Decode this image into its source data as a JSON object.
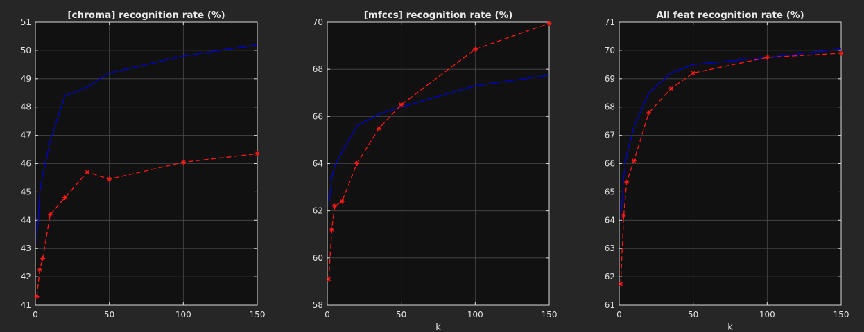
{
  "figure": {
    "background": "#262626",
    "axes_background": "#111111",
    "grid_color": "#4a4a4a",
    "text_color": "#e0e0e0"
  },
  "chart_data": [
    {
      "type": "line",
      "title": "[chroma] recognition rate (%)",
      "xlabel": "",
      "ylabel": "",
      "xlim": [
        0,
        150
      ],
      "ylim": [
        41,
        51
      ],
      "xticks": [
        0,
        50,
        100,
        150
      ],
      "yticks": [
        41,
        42,
        43,
        44,
        45,
        46,
        47,
        48,
        49,
        50,
        51
      ],
      "grid": true,
      "series": [
        {
          "color": "#0000cc",
          "style": "solid",
          "marker": "none",
          "x": [
            1,
            3,
            5,
            10,
            20,
            35,
            50,
            100,
            150
          ],
          "y": [
            43.2,
            45.0,
            45.6,
            46.8,
            48.4,
            48.7,
            49.2,
            49.8,
            50.2
          ]
        },
        {
          "color": "#ff1a1a",
          "style": "dashed",
          "marker": "asterisk",
          "x": [
            1,
            3,
            5,
            10,
            20,
            35,
            50,
            100,
            150
          ],
          "y": [
            41.3,
            42.25,
            42.65,
            44.2,
            44.8,
            45.7,
            45.45,
            46.05,
            46.35
          ]
        }
      ]
    },
    {
      "type": "line",
      "title": "[mfccs] recognition rate (%)",
      "xlabel": "k",
      "ylabel": "",
      "xlim": [
        0,
        150
      ],
      "ylim": [
        58,
        70
      ],
      "xticks": [
        0,
        50,
        100,
        150
      ],
      "yticks": [
        58,
        60,
        62,
        64,
        66,
        68,
        70
      ],
      "grid": true,
      "series": [
        {
          "color": "#0000cc",
          "style": "solid",
          "marker": "none",
          "x": [
            1,
            3,
            5,
            10,
            20,
            35,
            50,
            100,
            150
          ],
          "y": [
            62.2,
            63.4,
            63.9,
            64.5,
            65.6,
            66.1,
            66.4,
            67.3,
            67.75
          ]
        },
        {
          "color": "#ff1a1a",
          "style": "dashed",
          "marker": "asterisk",
          "x": [
            1,
            3,
            5,
            10,
            20,
            35,
            50,
            100,
            150
          ],
          "y": [
            59.1,
            61.2,
            62.2,
            62.4,
            64.0,
            65.5,
            66.5,
            68.85,
            69.95
          ]
        }
      ]
    },
    {
      "type": "line",
      "title": "All feat recognition rate (%)",
      "xlabel": "k",
      "ylabel": "",
      "xlim": [
        0,
        150
      ],
      "ylim": [
        61,
        71
      ],
      "xticks": [
        0,
        50,
        100,
        150
      ],
      "yticks": [
        61,
        62,
        63,
        64,
        65,
        66,
        67,
        68,
        69,
        70,
        71
      ],
      "grid": true,
      "series": [
        {
          "color": "#0000cc",
          "style": "solid",
          "marker": "none",
          "x": [
            1,
            3,
            5,
            10,
            20,
            35,
            50,
            100,
            150
          ],
          "y": [
            64.0,
            65.5,
            66.3,
            67.3,
            68.5,
            69.2,
            69.5,
            69.75,
            70.05
          ]
        },
        {
          "color": "#ff1a1a",
          "style": "dashed",
          "marker": "asterisk",
          "x": [
            1,
            3,
            5,
            10,
            20,
            35,
            50,
            100,
            150
          ],
          "y": [
            61.75,
            64.15,
            65.35,
            66.1,
            67.8,
            68.65,
            69.2,
            69.75,
            69.9
          ]
        }
      ]
    }
  ]
}
